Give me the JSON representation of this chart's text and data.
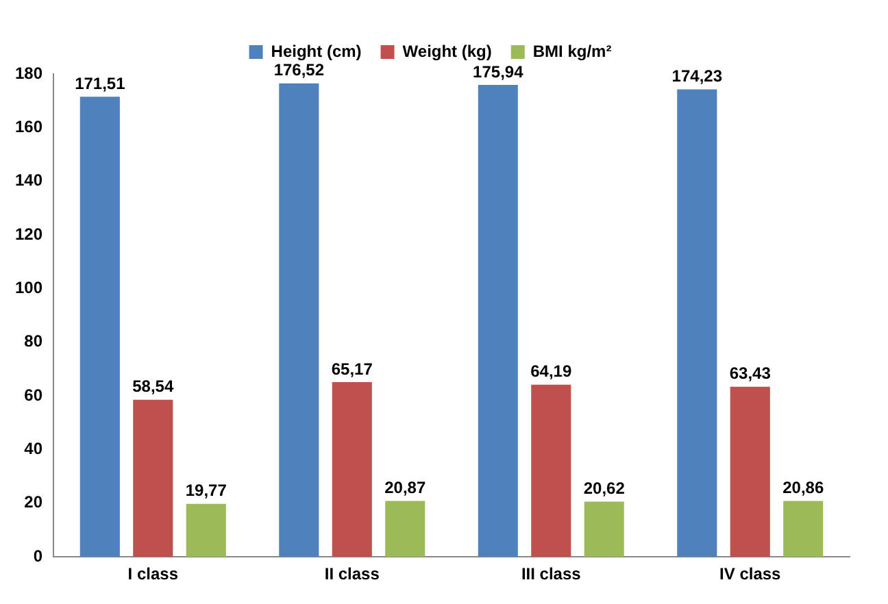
{
  "chart_data": {
    "type": "bar",
    "categories": [
      "I class",
      "II class",
      "III class",
      "IV class"
    ],
    "series": [
      {
        "name": "Height (cm)",
        "color": "#4f81bd",
        "values": [
          171.51,
          176.52,
          175.94,
          174.23
        ],
        "value_labels": [
          "171,51",
          "176,52",
          "175,94",
          "174,23"
        ]
      },
      {
        "name": "Weight (kg)",
        "color": "#c0504d",
        "values": [
          58.54,
          65.17,
          64.19,
          63.43
        ],
        "value_labels": [
          "58,54",
          "65,17",
          "64,19",
          "63,43"
        ]
      },
      {
        "name": "BMI kg/m²",
        "color": "#9bbb59",
        "values": [
          19.77,
          20.87,
          20.62,
          20.86
        ],
        "value_labels": [
          "19,77",
          "20,87",
          "20,62",
          "20,86"
        ]
      }
    ],
    "ylim": [
      0,
      180
    ],
    "yticks": [
      0,
      20,
      40,
      60,
      80,
      100,
      120,
      140,
      160,
      180
    ],
    "grid": false,
    "legend": "top"
  }
}
